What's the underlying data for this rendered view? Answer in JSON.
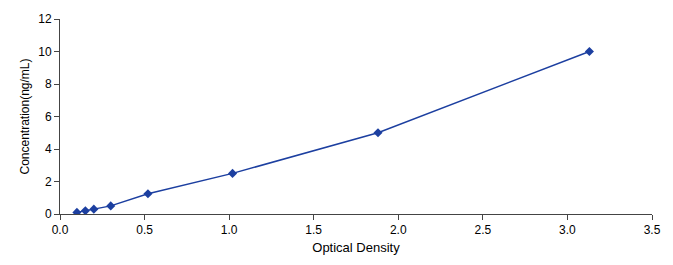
{
  "chart_data": {
    "type": "line",
    "xlabel": "Optical Density",
    "ylabel": "Concentration(ng/mL)",
    "x": [
      0.1,
      0.15,
      0.2,
      0.3,
      0.52,
      1.02,
      1.88,
      3.13
    ],
    "values": [
      0.1,
      0.2,
      0.3,
      0.5,
      1.25,
      2.5,
      5.0,
      10.0
    ],
    "color": "#1c3fa0",
    "marker": "diamond",
    "xlim": [
      0,
      3.5
    ],
    "ylim": [
      0,
      12
    ],
    "xticks": [
      {
        "value": 0,
        "label": "0.0"
      },
      0.5,
      {
        "value": 1.0,
        "label": "1.0"
      },
      1.5,
      {
        "value": 2.0,
        "label": "2.0"
      },
      2.5,
      {
        "value": 3.0,
        "label": "3.0"
      },
      3.5
    ],
    "yticks": [
      0,
      2,
      4,
      6,
      8,
      10,
      12
    ],
    "grid": false
  }
}
